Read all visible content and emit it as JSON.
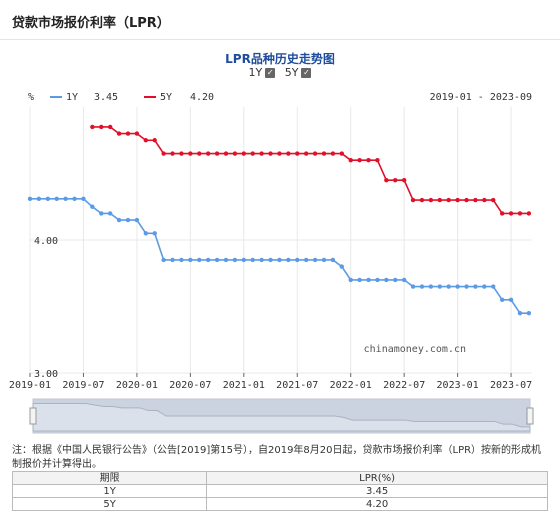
{
  "header": {
    "title": "贷款市场报价利率（LPR）"
  },
  "toggles": [
    {
      "label": "1Y",
      "checked": true
    },
    {
      "label": "5Y",
      "checked": true
    }
  ],
  "colors": {
    "one_year": "#5b9be6",
    "five_year": "#e0102a",
    "title": "#1e4d9b"
  },
  "chart_data": {
    "type": "line",
    "title": "LPR品种历史走势图",
    "ylabel": "%",
    "date_range": "2019-01 - 2023-09",
    "watermark": "chinamoney.com.cn",
    "x_tick_labels": [
      "2019-01",
      "2019-07",
      "2020-01",
      "2020-07",
      "2021-01",
      "2021-07",
      "2022-01",
      "2022-07",
      "2023-01",
      "2023-07"
    ],
    "x_ticks": [
      "2019-01",
      "2019-07",
      "2020-01",
      "2020-07",
      "2021-01",
      "2021-07",
      "2022-01",
      "2022-07",
      "2023-01",
      "2023-07"
    ],
    "xlim": [
      "2019-01",
      "2023-09"
    ],
    "ylim": [
      3.0,
      5.0
    ],
    "y_tick_labels": [
      "3.00",
      "4.00"
    ],
    "y_ticks": [
      3.0,
      4.0
    ],
    "grid": true,
    "legend_position": "top-left",
    "series": [
      {
        "name": "1Y",
        "latest": "3.45",
        "points": [
          [
            "2019-01",
            4.31
          ],
          [
            "2019-02",
            4.31
          ],
          [
            "2019-03",
            4.31
          ],
          [
            "2019-04",
            4.31
          ],
          [
            "2019-05",
            4.31
          ],
          [
            "2019-06",
            4.31
          ],
          [
            "2019-07",
            4.31
          ],
          [
            "2019-08",
            4.25
          ],
          [
            "2019-09",
            4.2
          ],
          [
            "2019-10",
            4.2
          ],
          [
            "2019-11",
            4.15
          ],
          [
            "2019-12",
            4.15
          ],
          [
            "2020-01",
            4.15
          ],
          [
            "2020-02",
            4.05
          ],
          [
            "2020-03",
            4.05
          ],
          [
            "2020-04",
            3.85
          ],
          [
            "2020-05",
            3.85
          ],
          [
            "2020-06",
            3.85
          ],
          [
            "2020-07",
            3.85
          ],
          [
            "2020-08",
            3.85
          ],
          [
            "2020-09",
            3.85
          ],
          [
            "2020-10",
            3.85
          ],
          [
            "2020-11",
            3.85
          ],
          [
            "2020-12",
            3.85
          ],
          [
            "2021-01",
            3.85
          ],
          [
            "2021-02",
            3.85
          ],
          [
            "2021-03",
            3.85
          ],
          [
            "2021-04",
            3.85
          ],
          [
            "2021-05",
            3.85
          ],
          [
            "2021-06",
            3.85
          ],
          [
            "2021-07",
            3.85
          ],
          [
            "2021-08",
            3.85
          ],
          [
            "2021-09",
            3.85
          ],
          [
            "2021-10",
            3.85
          ],
          [
            "2021-11",
            3.85
          ],
          [
            "2021-12",
            3.8
          ],
          [
            "2022-01",
            3.7
          ],
          [
            "2022-02",
            3.7
          ],
          [
            "2022-03",
            3.7
          ],
          [
            "2022-04",
            3.7
          ],
          [
            "2022-05",
            3.7
          ],
          [
            "2022-06",
            3.7
          ],
          [
            "2022-07",
            3.7
          ],
          [
            "2022-08",
            3.65
          ],
          [
            "2022-09",
            3.65
          ],
          [
            "2022-10",
            3.65
          ],
          [
            "2022-11",
            3.65
          ],
          [
            "2022-12",
            3.65
          ],
          [
            "2023-01",
            3.65
          ],
          [
            "2023-02",
            3.65
          ],
          [
            "2023-03",
            3.65
          ],
          [
            "2023-04",
            3.65
          ],
          [
            "2023-05",
            3.65
          ],
          [
            "2023-06",
            3.55
          ],
          [
            "2023-07",
            3.55
          ],
          [
            "2023-08",
            3.45
          ],
          [
            "2023-09",
            3.45
          ]
        ]
      },
      {
        "name": "5Y",
        "latest": "4.20",
        "points": [
          [
            "2019-08",
            4.85
          ],
          [
            "2019-09",
            4.85
          ],
          [
            "2019-10",
            4.85
          ],
          [
            "2019-11",
            4.8
          ],
          [
            "2019-12",
            4.8
          ],
          [
            "2020-01",
            4.8
          ],
          [
            "2020-02",
            4.75
          ],
          [
            "2020-03",
            4.75
          ],
          [
            "2020-04",
            4.65
          ],
          [
            "2020-05",
            4.65
          ],
          [
            "2020-06",
            4.65
          ],
          [
            "2020-07",
            4.65
          ],
          [
            "2020-08",
            4.65
          ],
          [
            "2020-09",
            4.65
          ],
          [
            "2020-10",
            4.65
          ],
          [
            "2020-11",
            4.65
          ],
          [
            "2020-12",
            4.65
          ],
          [
            "2021-01",
            4.65
          ],
          [
            "2021-02",
            4.65
          ],
          [
            "2021-03",
            4.65
          ],
          [
            "2021-04",
            4.65
          ],
          [
            "2021-05",
            4.65
          ],
          [
            "2021-06",
            4.65
          ],
          [
            "2021-07",
            4.65
          ],
          [
            "2021-08",
            4.65
          ],
          [
            "2021-09",
            4.65
          ],
          [
            "2021-10",
            4.65
          ],
          [
            "2021-11",
            4.65
          ],
          [
            "2021-12",
            4.65
          ],
          [
            "2022-01",
            4.6
          ],
          [
            "2022-02",
            4.6
          ],
          [
            "2022-03",
            4.6
          ],
          [
            "2022-04",
            4.6
          ],
          [
            "2022-05",
            4.45
          ],
          [
            "2022-06",
            4.45
          ],
          [
            "2022-07",
            4.45
          ],
          [
            "2022-08",
            4.3
          ],
          [
            "2022-09",
            4.3
          ],
          [
            "2022-10",
            4.3
          ],
          [
            "2022-11",
            4.3
          ],
          [
            "2022-12",
            4.3
          ],
          [
            "2023-01",
            4.3
          ],
          [
            "2023-02",
            4.3
          ],
          [
            "2023-03",
            4.3
          ],
          [
            "2023-04",
            4.3
          ],
          [
            "2023-05",
            4.3
          ],
          [
            "2023-06",
            4.2
          ],
          [
            "2023-07",
            4.2
          ],
          [
            "2023-08",
            4.2
          ],
          [
            "2023-09",
            4.2
          ]
        ]
      }
    ]
  },
  "note": "注：根据《中国人民银行公告》（公告[2019]第15号），自2019年8月20日起，贷款市场报价利率（LPR）按新的形成机制报价并计算得出。",
  "table": {
    "headers": [
      "期限",
      "LPR(%)"
    ],
    "rows": [
      [
        "1Y",
        "3.45"
      ],
      [
        "5Y",
        "4.20"
      ]
    ]
  }
}
